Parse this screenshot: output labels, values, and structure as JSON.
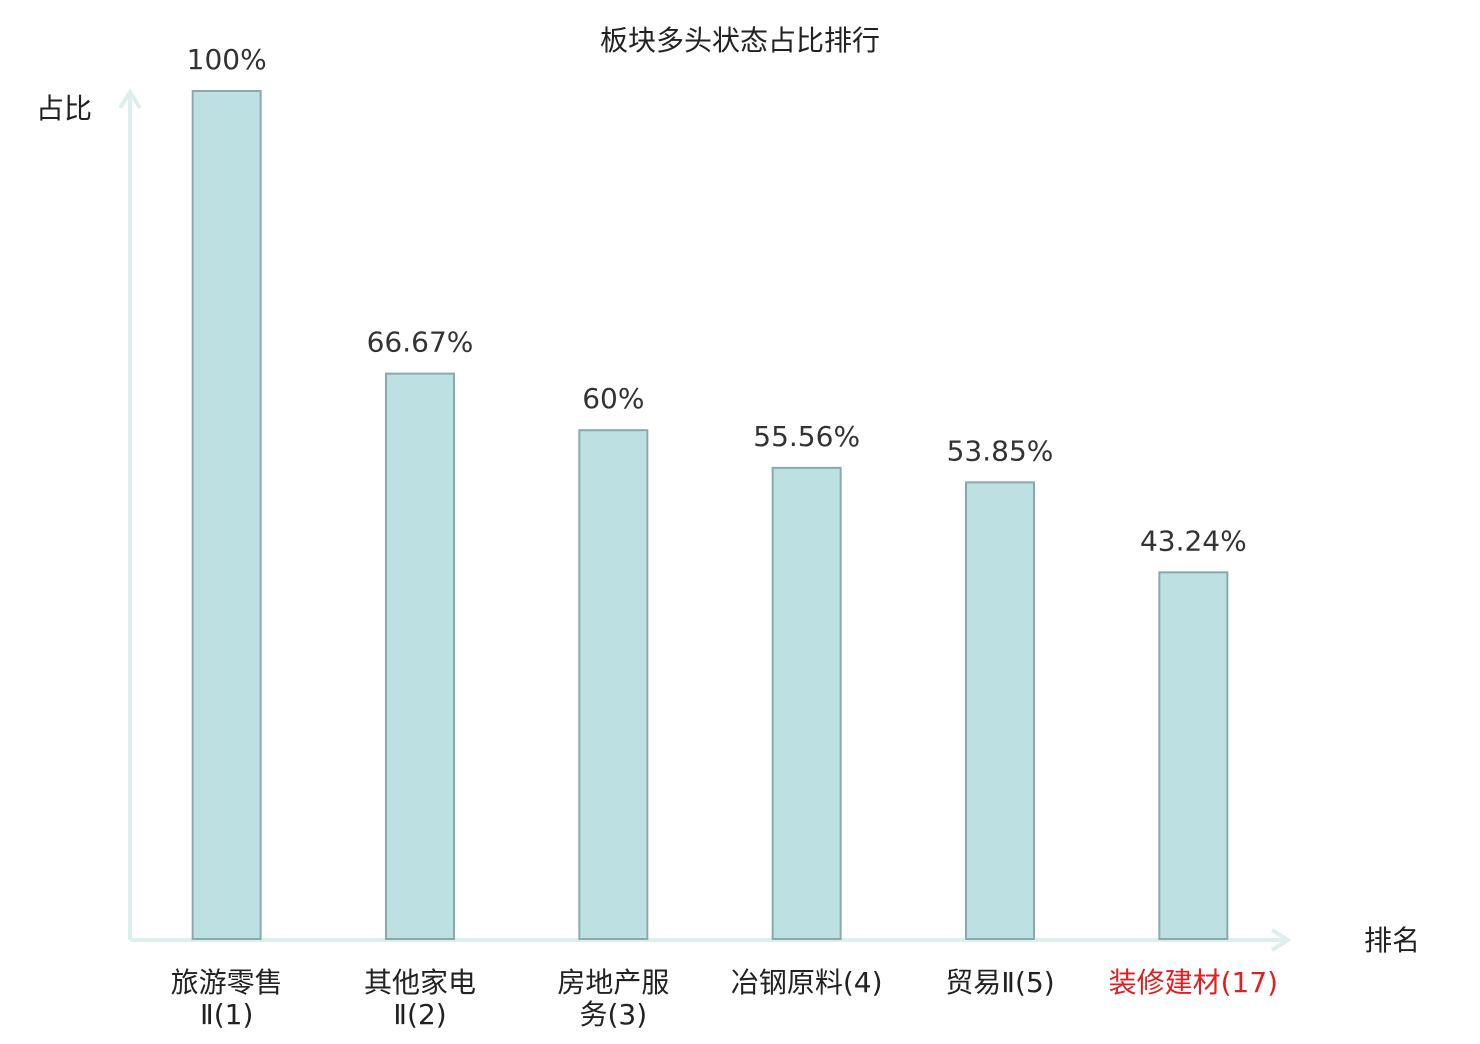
{
  "chart_data": {
    "type": "bar",
    "title": "板块多头状态占比排行",
    "y_label": "占比",
    "x_label": "排名",
    "categories": [
      [
        "旅游零售",
        "Ⅱ(1)"
      ],
      [
        "其他家电",
        "Ⅱ(2)"
      ],
      [
        "房地产服",
        "务(3)"
      ],
      [
        "冶钢原料(4)"
      ],
      [
        "贸易Ⅱ(5)"
      ],
      [
        "装修建材(17)"
      ]
    ],
    "values": [
      100,
      66.67,
      60,
      55.56,
      53.85,
      43.24
    ],
    "value_labels": [
      "100%",
      "66.67%",
      "60%",
      "55.56%",
      "53.85%",
      "43.24%"
    ],
    "label_colors": [
      "#222222",
      "#222222",
      "#222222",
      "#222222",
      "#222222",
      "#e02020"
    ],
    "color": "#bde0e3",
    "ylim": [
      0,
      100
    ]
  }
}
